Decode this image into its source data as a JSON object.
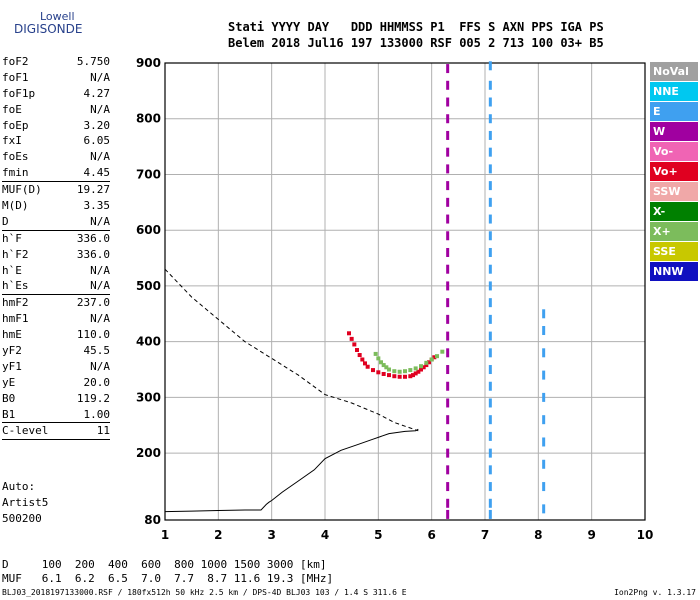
{
  "logo": {
    "line1": "Lowell",
    "line2": "DIGISONDE"
  },
  "header": {
    "line1": "Stati YYYY DAY   DDD HHMMSS P1  FFS S AXN PPS IGA PS",
    "line2": "Belem 2018 Jul16 197 133000 RSF 005 2 713 100 03+ B5"
  },
  "params": [
    {
      "name": "foF2",
      "value": "5.750"
    },
    {
      "name": "foF1",
      "value": "N/A"
    },
    {
      "name": "foF1p",
      "value": "4.27"
    },
    {
      "name": "foE",
      "value": "N/A"
    },
    {
      "name": "foEp",
      "value": "3.20"
    },
    {
      "name": "fxI",
      "value": "6.05"
    },
    {
      "name": "foEs",
      "value": "N/A"
    },
    {
      "name": "fmin",
      "value": "4.45"
    },
    {
      "name": "MUF(D)",
      "value": "19.27",
      "sep": true
    },
    {
      "name": "M(D)",
      "value": "3.35"
    },
    {
      "name": "D",
      "value": "N/A"
    },
    {
      "name": "h`F",
      "value": "336.0",
      "sep": true
    },
    {
      "name": "h`F2",
      "value": "336.0"
    },
    {
      "name": "h`E",
      "value": "N/A"
    },
    {
      "name": "h`Es",
      "value": "N/A"
    },
    {
      "name": "hmF2",
      "value": "237.0",
      "sep": true
    },
    {
      "name": "hmF1",
      "value": "N/A"
    },
    {
      "name": "hmE",
      "value": "110.0"
    },
    {
      "name": "yF2",
      "value": "45.5"
    },
    {
      "name": "yF1",
      "value": "N/A"
    },
    {
      "name": "yE",
      "value": "20.0"
    },
    {
      "name": "B0",
      "value": "119.2"
    },
    {
      "name": "B1",
      "value": "1.00"
    },
    {
      "name": "C-level",
      "value": "11",
      "sep": true
    }
  ],
  "auto": {
    "line1": "Auto:",
    "line2": "Artist5",
    "line3": "500200"
  },
  "legend": [
    {
      "label": "NoVal",
      "color": "#a0a0a0"
    },
    {
      "label": "NNE",
      "color": "#00c8f0"
    },
    {
      "label": "E",
      "color": "#3fa0f0"
    },
    {
      "label": "W",
      "color": "#a000a0"
    },
    {
      "label": "Vo-",
      "color": "#f064b4"
    },
    {
      "label": "Vo+",
      "color": "#e00020"
    },
    {
      "label": "SSW",
      "color": "#f0a8a8"
    },
    {
      "label": "X-",
      "color": "#008000"
    },
    {
      "label": "X+",
      "color": "#7cbc5c"
    },
    {
      "label": "SSE",
      "color": "#c8c800"
    },
    {
      "label": "NNW",
      "color": "#1010c0"
    }
  ],
  "footer": {
    "d_line": "D     100  200  400  600  800 1000 1500 3000 [km]",
    "muf_line": "MUF   6.1  6.2  6.5  7.0  7.7  8.7 11.6 19.3 [MHz]",
    "file_line": "BLJ03_2018197133000.RSF / 180fx512h 50 kHz 2.5 km / DPS-4D BLJ03 103 / 1.4 S 311.6 E",
    "version": "Ion2Png v. 1.3.17"
  },
  "chart_data": {
    "type": "scatter",
    "xlim": [
      1,
      10
    ],
    "ylim": [
      80,
      900
    ],
    "x_ticks": [
      1,
      2,
      3,
      4,
      5,
      6,
      7,
      8,
      9,
      10
    ],
    "y_ticks": [
      80,
      200,
      300,
      400,
      500,
      600,
      700,
      800,
      900
    ],
    "y_tick_labels": [
      "80",
      "200",
      "300",
      "400",
      "500",
      "600",
      "700",
      "800",
      "900"
    ],
    "grid": true,
    "series": [
      {
        "name": "Vo+",
        "color": "#e00020",
        "points": [
          [
            4.45,
            415
          ],
          [
            4.5,
            405
          ],
          [
            4.55,
            395
          ],
          [
            4.6,
            385
          ],
          [
            4.65,
            376
          ],
          [
            4.7,
            368
          ],
          [
            4.75,
            361
          ],
          [
            4.8,
            355
          ],
          [
            4.9,
            349
          ],
          [
            5.0,
            345
          ],
          [
            5.1,
            342
          ],
          [
            5.2,
            340
          ],
          [
            5.3,
            338
          ],
          [
            5.4,
            337
          ],
          [
            5.5,
            337
          ],
          [
            5.6,
            338
          ],
          [
            5.65,
            340
          ],
          [
            5.7,
            343
          ],
          [
            5.75,
            346
          ],
          [
            5.8,
            350
          ],
          [
            5.85,
            354
          ],
          [
            5.9,
            358
          ],
          [
            5.95,
            363
          ],
          [
            6.0,
            368
          ],
          [
            6.05,
            372
          ]
        ]
      },
      {
        "name": "X+",
        "color": "#7cbc5c",
        "points": [
          [
            4.95,
            378
          ],
          [
            5.0,
            370
          ],
          [
            5.05,
            363
          ],
          [
            5.1,
            358
          ],
          [
            5.15,
            354
          ],
          [
            5.2,
            350
          ],
          [
            5.3,
            347
          ],
          [
            5.4,
            346
          ],
          [
            5.5,
            347
          ],
          [
            5.6,
            349
          ],
          [
            5.7,
            352
          ],
          [
            5.8,
            356
          ],
          [
            5.9,
            362
          ],
          [
            6.0,
            368
          ],
          [
            6.1,
            374
          ],
          [
            6.2,
            382
          ]
        ]
      },
      {
        "name": "W",
        "color": "#a000a0",
        "points": [
          [
            6.3,
            890
          ],
          [
            6.3,
            860
          ],
          [
            6.3,
            830
          ],
          [
            6.3,
            800
          ],
          [
            6.3,
            770
          ],
          [
            6.3,
            740
          ],
          [
            6.3,
            710
          ],
          [
            6.3,
            680
          ],
          [
            6.3,
            650
          ],
          [
            6.3,
            620
          ],
          [
            6.3,
            590
          ],
          [
            6.3,
            560
          ],
          [
            6.3,
            530
          ],
          [
            6.3,
            500
          ],
          [
            6.3,
            470
          ],
          [
            6.3,
            440
          ],
          [
            6.3,
            410
          ],
          [
            6.3,
            380
          ],
          [
            6.3,
            350
          ],
          [
            6.3,
            320
          ],
          [
            6.3,
            290
          ],
          [
            6.3,
            260
          ],
          [
            6.3,
            230
          ],
          [
            6.3,
            200
          ],
          [
            6.3,
            170
          ],
          [
            6.3,
            140
          ],
          [
            6.3,
            110
          ],
          [
            6.3,
            90
          ]
        ]
      },
      {
        "name": "E",
        "color": "#3fa0f0",
        "points": [
          [
            7.1,
            895
          ],
          [
            7.1,
            860
          ],
          [
            7.1,
            830
          ],
          [
            7.1,
            800
          ],
          [
            7.1,
            770
          ],
          [
            7.1,
            740
          ],
          [
            7.1,
            710
          ],
          [
            7.1,
            680
          ],
          [
            7.1,
            650
          ],
          [
            7.1,
            620
          ],
          [
            7.1,
            590
          ],
          [
            7.1,
            560
          ],
          [
            7.1,
            530
          ],
          [
            7.1,
            500
          ],
          [
            7.1,
            470
          ],
          [
            7.1,
            440
          ],
          [
            7.1,
            410
          ],
          [
            7.1,
            380
          ],
          [
            7.1,
            350
          ],
          [
            7.1,
            320
          ],
          [
            7.1,
            290
          ],
          [
            7.1,
            260
          ],
          [
            7.1,
            230
          ],
          [
            7.1,
            200
          ],
          [
            7.1,
            170
          ],
          [
            7.1,
            140
          ],
          [
            7.1,
            110
          ],
          [
            7.1,
            90
          ],
          [
            8.1,
            450
          ],
          [
            8.1,
            420
          ],
          [
            8.1,
            380
          ],
          [
            8.1,
            340
          ],
          [
            8.1,
            300
          ],
          [
            8.1,
            260
          ],
          [
            8.1,
            220
          ],
          [
            8.1,
            180
          ],
          [
            8.1,
            140
          ],
          [
            8.1,
            100
          ]
        ]
      }
    ],
    "profile": {
      "name": "true height profile",
      "points": [
        [
          1.0,
          95
        ],
        [
          1.5,
          96
        ],
        [
          2.0,
          97
        ],
        [
          2.5,
          98
        ],
        [
          2.8,
          98
        ],
        [
          2.9,
          108
        ],
        [
          2.95,
          112
        ],
        [
          3.0,
          115
        ],
        [
          3.2,
          130
        ],
        [
          3.5,
          150
        ],
        [
          3.8,
          170
        ],
        [
          4.0,
          190
        ],
        [
          4.3,
          205
        ],
        [
          4.6,
          215
        ],
        [
          4.9,
          225
        ],
        [
          5.2,
          235
        ],
        [
          5.5,
          239
        ],
        [
          5.7,
          240
        ],
        [
          5.75,
          243
        ]
      ]
    },
    "x_profile": {
      "name": "extrapolated topside",
      "points": [
        [
          1.0,
          530
        ],
        [
          1.5,
          480
        ],
        [
          2.0,
          440
        ],
        [
          2.5,
          400
        ],
        [
          3.0,
          370
        ],
        [
          3.5,
          340
        ],
        [
          4.0,
          305
        ],
        [
          4.5,
          290
        ],
        [
          5.0,
          270
        ],
        [
          5.3,
          255
        ],
        [
          5.6,
          245
        ],
        [
          5.75,
          240
        ]
      ]
    }
  }
}
